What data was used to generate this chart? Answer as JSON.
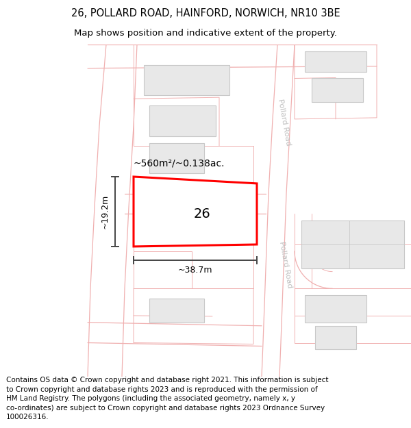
{
  "title_line1": "26, POLLARD ROAD, HAINFORD, NORWICH, NR10 3BE",
  "title_line2": "Map shows position and indicative extent of the property.",
  "copyright_text": "Contains OS data © Crown copyright and database right 2021. This information is subject\nto Crown copyright and database rights 2023 and is reproduced with the permission of\nHM Land Registry. The polygons (including the associated geometry, namely x, y\nco-ordinates) are subject to Crown copyright and database rights 2023 Ordnance Survey\n100026316.",
  "bg_color": "#ffffff",
  "map_bg": "#ffffff",
  "road_line_color": "#f0b0b0",
  "building_fill": "#e8e8e8",
  "building_border": "#c8c8c8",
  "plot_color": "#ff0000",
  "plot_fill": "#ffffff",
  "plot_label": "26",
  "area_label": "~560m²/~0.138ac.",
  "dim_width_label": "~38.7m",
  "dim_height_label": "~19.2m",
  "road_label": "Pollard Road",
  "title_fontsize": 10.5,
  "subtitle_fontsize": 9.5,
  "copyright_fontsize": 7.5,
  "dim_color": "#444444",
  "road_text_color": "#c0c0c0"
}
